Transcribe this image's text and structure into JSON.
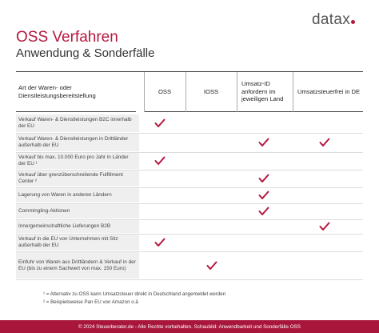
{
  "logo": "datax",
  "header": {
    "title": "OSS Verfahren",
    "subtitle": "Anwendung & Sonderfälle"
  },
  "table": {
    "columns": [
      "Art der Waren- oder Dienstleistungsbereitstellung",
      "OSS",
      "IOSS",
      "Umsatz-ID anfordern im jeweiligen Land",
      "Umsatzsteuerfrei in DE"
    ],
    "rows": [
      {
        "label": "Verkauf Waren- & Dienstleistungen B2C innerhalb der EU",
        "checks": [
          true,
          false,
          false,
          false
        ]
      },
      {
        "label": "Verkauf Waren- & Dienstleistungen in Drittländer außerhalb der EU",
        "checks": [
          false,
          false,
          true,
          true
        ]
      },
      {
        "label": "Verkauf bis max. 10.000 Euro pro Jahr in Länder der EU ¹",
        "checks": [
          true,
          false,
          false,
          false
        ]
      },
      {
        "label": "Verkauf über grenzüberschreitende Fulfillment Center ²",
        "checks": [
          false,
          false,
          true,
          false
        ]
      },
      {
        "label": "Lagerung von Waren in anderen Ländern",
        "checks": [
          false,
          false,
          true,
          false
        ]
      },
      {
        "label": "Commingling-Aktionen",
        "checks": [
          false,
          false,
          true,
          false
        ]
      },
      {
        "label": "Innergemeinschaftliche Lieferungen B2B",
        "checks": [
          false,
          false,
          false,
          true
        ]
      },
      {
        "label": "Verkauf in die EU von Unternehmen mit Sitz außerhalb der EU",
        "checks": [
          true,
          false,
          false,
          false
        ]
      },
      {
        "label": "Einfuhr von Waren aus Drittländern & Verkauf in der EU (bis zu einem Sachwert von max. 150 Euro)",
        "checks": [
          false,
          true,
          false,
          false
        ]
      }
    ]
  },
  "footnotes": [
    "¹ = Alternativ zu OSS kann Umsatzsteuer direkt in Deutschland angemeldet werden",
    "² = Beispielsweise Pan EU von Amazon o.ä"
  ],
  "footer": "© 2024 Steuerberater.de - Alle Rechte vorbehalten. Schaubild: Anwendbarkeit und Sonderfälle OSS"
}
